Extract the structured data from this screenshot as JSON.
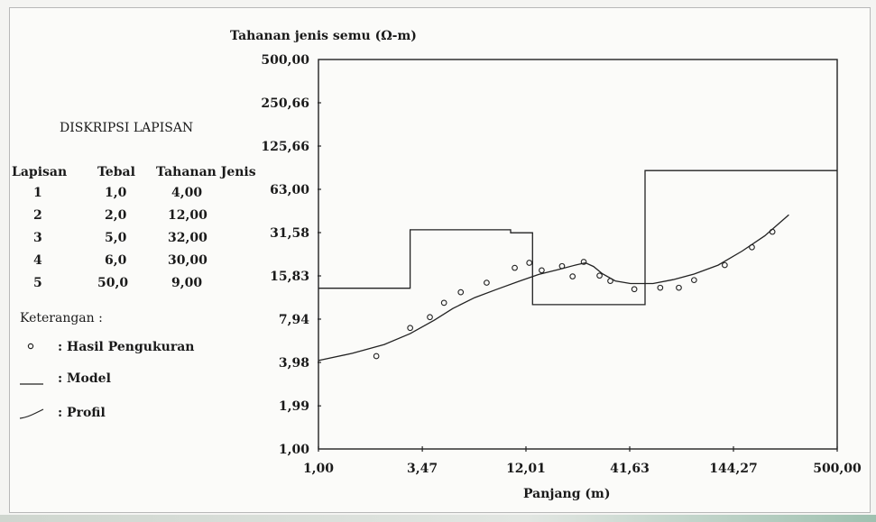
{
  "description": {
    "title": "DISKRIPSI LAPISAN",
    "headers": [
      "Lapisan",
      "Tebal",
      "Tahanan Jenis"
    ],
    "rows": [
      [
        "1",
        "1,0",
        "4,00"
      ],
      [
        "2",
        "2,0",
        "12,00"
      ],
      [
        "3",
        "5,0",
        "32,00"
      ],
      [
        "4",
        "6,0",
        "30,00"
      ],
      [
        "5",
        "50,0",
        "9,00"
      ]
    ]
  },
  "legend": {
    "title": "Keterangan :",
    "items": [
      {
        "symbol": "circle",
        "label": ": Hasil Pengukuran"
      },
      {
        "symbol": "line",
        "label": ": Model"
      },
      {
        "symbol": "curve",
        "label": ": Profil"
      }
    ]
  },
  "chart_data": {
    "type": "line",
    "ylabel": "Tahanan jenis semu (Ω-m)",
    "xlabel": "Panjang (m)",
    "x_scale": "log",
    "y_scale": "log",
    "xlim": [
      1.0,
      500.0
    ],
    "ylim": [
      1.0,
      500.0
    ],
    "x_ticks": [
      {
        "value": 1.0,
        "label": "1,00"
      },
      {
        "value": 3.47,
        "label": "3,47"
      },
      {
        "value": 12.01,
        "label": "12,01"
      },
      {
        "value": 41.63,
        "label": "41,63"
      },
      {
        "value": 144.27,
        "label": "144,27"
      },
      {
        "value": 500.0,
        "label": "500,00"
      }
    ],
    "y_ticks": [
      {
        "value": 1.0,
        "label": "1,00"
      },
      {
        "value": 1.99,
        "label": "1,99"
      },
      {
        "value": 3.98,
        "label": "3,98"
      },
      {
        "value": 7.94,
        "label": "7,94"
      },
      {
        "value": 15.83,
        "label": "15,83"
      },
      {
        "value": 31.58,
        "label": "31,58"
      },
      {
        "value": 63.0,
        "label": "63,00"
      },
      {
        "value": 125.66,
        "label": "125,66"
      },
      {
        "value": 250.66,
        "label": "250,66"
      },
      {
        "value": 500.0,
        "label": "500,00"
      }
    ],
    "series": [
      {
        "style": "step",
        "color": "#222222",
        "points": [
          [
            1.0,
            13.0
          ],
          [
            3.0,
            13.0
          ],
          [
            3.0,
            33.0
          ],
          [
            10.0,
            33.0
          ],
          [
            10.0,
            31.5
          ],
          [
            13.0,
            31.5
          ],
          [
            13.0,
            10.0
          ],
          [
            50.0,
            10.0
          ],
          [
            50.0,
            85.0
          ],
          [
            500.0,
            85.0
          ]
        ]
      },
      {
        "style": "line",
        "color": "#222222",
        "points": [
          [
            1.0,
            4.1
          ],
          [
            1.5,
            4.6
          ],
          [
            2.2,
            5.3
          ],
          [
            3.0,
            6.3
          ],
          [
            4.0,
            7.8
          ],
          [
            5.0,
            9.4
          ],
          [
            6.5,
            11.2
          ],
          [
            8.5,
            12.8
          ],
          [
            11.0,
            14.5
          ],
          [
            14.0,
            16.2
          ],
          [
            18.0,
            17.6
          ],
          [
            22.0,
            18.9
          ],
          [
            24.5,
            19.5
          ],
          [
            27.0,
            18.4
          ],
          [
            30.0,
            16.4
          ],
          [
            35.0,
            14.6
          ],
          [
            42.0,
            14.0
          ],
          [
            55.0,
            14.0
          ],
          [
            70.0,
            14.9
          ],
          [
            90.0,
            16.3
          ],
          [
            120.0,
            18.8
          ],
          [
            160.0,
            23.5
          ],
          [
            210.0,
            30.0
          ],
          [
            280.0,
            42.0
          ]
        ]
      },
      {
        "style": "scatter",
        "marker": "circle",
        "color": "#222222",
        "points": [
          [
            2.0,
            4.4
          ],
          [
            3.0,
            6.9
          ],
          [
            3.8,
            8.2
          ],
          [
            4.5,
            10.3
          ],
          [
            5.5,
            12.2
          ],
          [
            7.5,
            14.2
          ],
          [
            10.5,
            18.0
          ],
          [
            12.5,
            19.5
          ],
          [
            14.5,
            17.3
          ],
          [
            18.5,
            18.5
          ],
          [
            21.0,
            15.7
          ],
          [
            24.0,
            19.8
          ],
          [
            29.0,
            15.9
          ],
          [
            33.0,
            14.6
          ],
          [
            44.0,
            12.8
          ],
          [
            60.0,
            13.1
          ],
          [
            75.0,
            13.1
          ],
          [
            90.0,
            14.8
          ],
          [
            130.0,
            18.8
          ],
          [
            180.0,
            25.0
          ],
          [
            230.0,
            32.0
          ]
        ]
      }
    ]
  }
}
